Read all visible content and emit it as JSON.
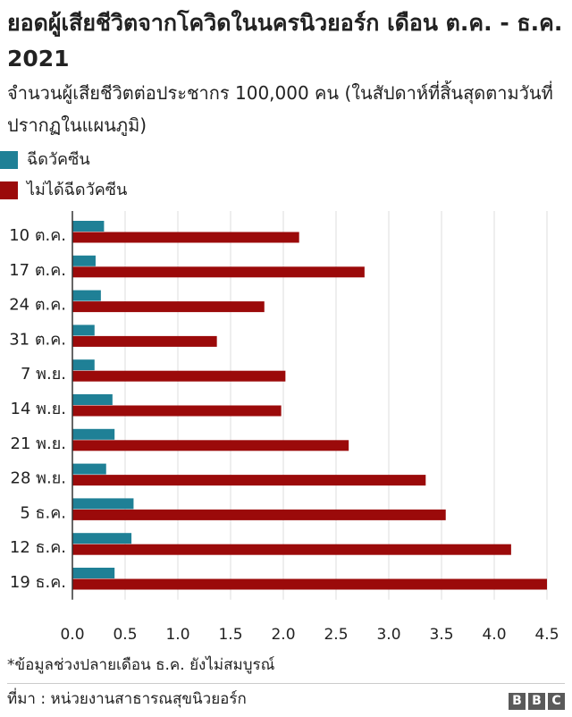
{
  "chart_data": {
    "type": "bar",
    "orientation": "horizontal",
    "title": "ยอดผู้เสียชีวิตจากโควิดในนครนิวยอร์ก เดือน ต.ค. - ธ.ค. 2021",
    "subtitle": "จำนวนผู้เสียชีวิตต่อประชากร 100,000 คน (ในสัปดาห์ที่สิ้นสุดตามวันที่ปรากฏในแผนภูมิ)",
    "categories": [
      "10 ต.ค.",
      "17 ต.ค.",
      "24 ต.ค.",
      "31 ต.ค.",
      "7 พ.ย.",
      "14 พ.ย.",
      "21 พ.ย.",
      "28 พ.ย.",
      "5 ธ.ค.",
      "12 ธ.ค.",
      "19 ธ.ค."
    ],
    "series": [
      {
        "name": "ฉีดวัคซีน",
        "color": "#1f8096",
        "values": [
          0.3,
          0.22,
          0.27,
          0.21,
          0.21,
          0.38,
          0.4,
          0.32,
          0.58,
          0.56,
          0.4
        ]
      },
      {
        "name": "ไม่ได้ฉีดวัคซีน",
        "color": "#9b0a0a",
        "values": [
          2.15,
          2.77,
          1.82,
          1.37,
          2.02,
          1.98,
          2.62,
          3.35,
          3.54,
          4.16,
          4.5
        ]
      }
    ],
    "xlim": [
      0,
      4.5
    ],
    "xticks": [
      "0.0",
      "0.5",
      "1.0",
      "1.5",
      "2.0",
      "2.5",
      "3.0",
      "3.5",
      "4.0",
      "4.5"
    ],
    "grid": true,
    "legend_position": "top-left"
  },
  "footnote": "*ข้อมูลช่วงปลายเดือน ธ.ค. ยังไม่สมบูรณ์",
  "source": "ที่มา : หน่วยงานสาธารณสุขนิวยอร์ก",
  "logo": [
    "B",
    "B",
    "C"
  ],
  "colors": {
    "text": "#222222",
    "grid": "#dddddd",
    "axis": "#333333"
  }
}
